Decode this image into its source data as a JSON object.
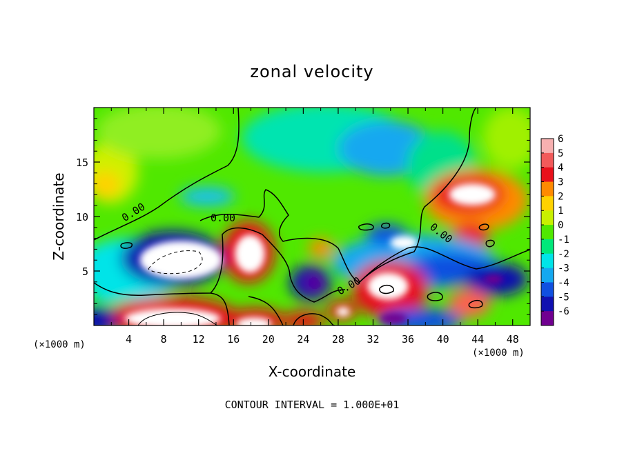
{
  "chart_data": {
    "type": "heatmap",
    "title": "zonal velocity",
    "xlabel": "X-coordinate",
    "ylabel": "Z-coordinate",
    "x_unit_left": "(×1000 m)",
    "x_unit_right": "(×1000 m)",
    "footer": "CONTOUR INTERVAL = 1.000E+01",
    "xlim": [
      0,
      50
    ],
    "ylim": [
      0,
      20
    ],
    "x_ticks": [
      "4",
      "8",
      "12",
      "16",
      "20",
      "24",
      "28",
      "32",
      "36",
      "40",
      "44",
      "48"
    ],
    "y_ticks": [
      "5",
      "10",
      "15"
    ],
    "contour_labels": [
      "0.00",
      "0.00",
      "0.00",
      "0.00"
    ],
    "colorbar": {
      "levels": [
        "6",
        "5",
        "4",
        "3",
        "2",
        "1",
        "0",
        "-1",
        "-2",
        "-3",
        "-4",
        "-5",
        "-6"
      ],
      "colors": [
        "#f7b0b0",
        "#f25a5a",
        "#e8101a",
        "#ff8a00",
        "#ffd200",
        "#c8f000",
        "#50e800",
        "#00e87a",
        "#00e4e8",
        "#14a8f0",
        "#1050e0",
        "#1010b0",
        "#700090"
      ]
    },
    "grid": false
  }
}
